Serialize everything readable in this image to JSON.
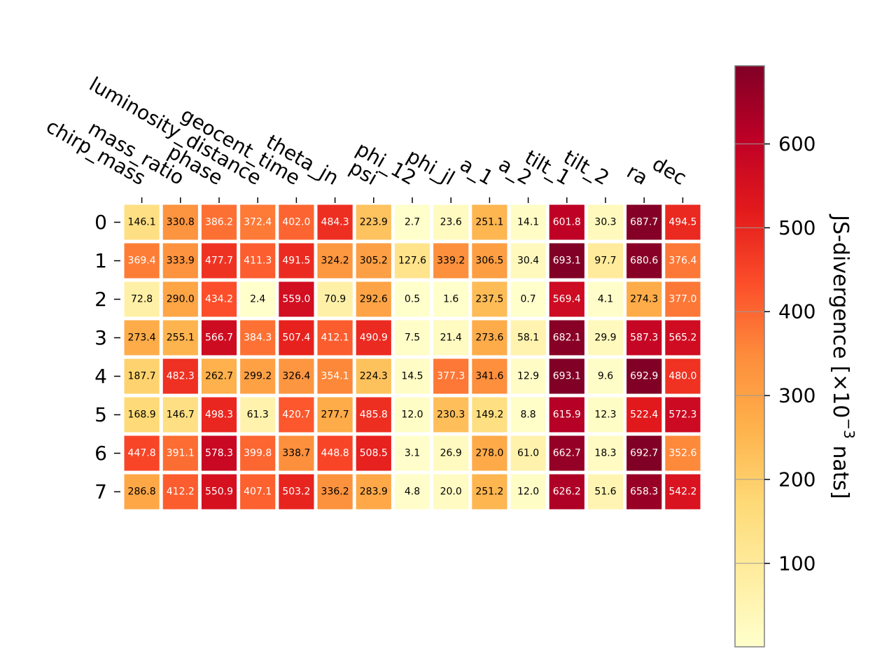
{
  "chart_data": {
    "type": "heatmap",
    "columns": [
      "chirp_mass",
      "mass_ratio",
      "phase",
      "luminosity_distance",
      "geocent_time",
      "theta_jn",
      "psi",
      "phi_12",
      "phi_jl",
      "a_1",
      "a_2",
      "tilt_1",
      "tilt_2",
      "ra",
      "dec"
    ],
    "rows": [
      "0",
      "1",
      "2",
      "3",
      "4",
      "5",
      "6",
      "7"
    ],
    "values": [
      [
        146.1,
        330.8,
        386.2,
        372.4,
        402.0,
        484.3,
        223.9,
        2.7,
        23.6,
        251.1,
        14.1,
        601.8,
        30.3,
        687.7,
        494.5
      ],
      [
        369.4,
        333.9,
        477.7,
        411.3,
        491.5,
        324.2,
        305.2,
        127.6,
        339.2,
        306.5,
        30.4,
        693.1,
        97.7,
        680.6,
        376.4
      ],
      [
        72.8,
        290.0,
        434.2,
        2.4,
        559.0,
        70.9,
        292.6,
        0.5,
        1.6,
        237.5,
        0.7,
        569.4,
        4.1,
        274.3,
        377.0
      ],
      [
        273.4,
        255.1,
        566.7,
        384.3,
        507.4,
        412.1,
        490.9,
        7.5,
        21.4,
        273.6,
        58.1,
        682.1,
        29.9,
        587.3,
        565.2
      ],
      [
        187.7,
        482.3,
        262.7,
        299.2,
        326.4,
        354.1,
        224.3,
        14.5,
        377.3,
        341.6,
        12.9,
        693.1,
        9.6,
        692.9,
        480.0
      ],
      [
        168.9,
        146.7,
        498.3,
        61.3,
        420.7,
        277.7,
        485.8,
        12.0,
        230.3,
        149.2,
        8.8,
        615.9,
        12.3,
        522.4,
        572.3
      ],
      [
        447.8,
        391.1,
        578.3,
        399.8,
        338.7,
        448.8,
        508.5,
        3.1,
        26.9,
        278.0,
        61.0,
        662.7,
        18.3,
        692.7,
        352.6
      ],
      [
        286.8,
        412.2,
        550.9,
        407.1,
        503.2,
        336.2,
        283.9,
        4.8,
        20.0,
        251.2,
        12.0,
        626.2,
        51.6,
        658.3,
        542.2
      ]
    ],
    "colorbar": {
      "label": "JS-divergence [×10",
      "label_exp": "−3",
      "label_suffix": " nats]",
      "ticks": [
        100,
        200,
        300,
        400,
        500,
        600
      ],
      "range": [
        0.5,
        693.1
      ],
      "colormap": "YlOrRd",
      "colors": [
        "#ffffcc",
        "#ffeda0",
        "#fed976",
        "#feb24c",
        "#fd8d3c",
        "#fc4e2a",
        "#e31a1c",
        "#bd0026",
        "#800026"
      ]
    },
    "text_color_threshold": 350,
    "label_colors": {
      "dark": "#000000",
      "light": "#ffffff"
    }
  }
}
